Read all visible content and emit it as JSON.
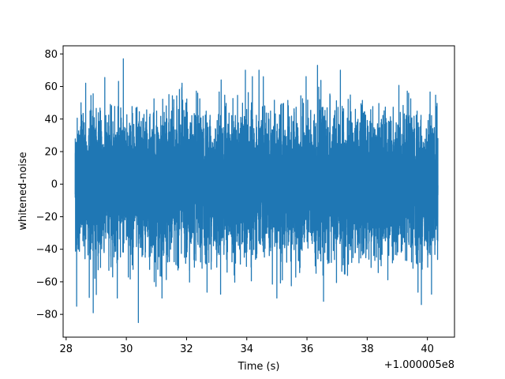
{
  "chart_data": {
    "type": "line",
    "title": "",
    "xlabel": "Time (s)",
    "ylabel": "whitened-noise",
    "x_offset_label": "+1.000005e8",
    "xlim": [
      27.9,
      40.9
    ],
    "ylim": [
      -94,
      85
    ],
    "x_range": [
      28.3,
      40.35
    ],
    "x_ticks": [
      28,
      30,
      32,
      34,
      36,
      38,
      40
    ],
    "y_ticks": [
      -80,
      -60,
      -40,
      -20,
      0,
      20,
      40,
      60,
      80
    ],
    "grid": false,
    "legend": "none",
    "series": [
      {
        "color": "#1f77b4",
        "typical_amplitude": 20,
        "extremes": [
          {
            "x": 29.9,
            "y": 77
          },
          {
            "x": 30.4,
            "y": -85
          },
          {
            "x": 28.35,
            "y": -75
          },
          {
            "x": 36.35,
            "y": 73
          },
          {
            "x": 36.55,
            "y": -72
          },
          {
            "x": 28.65,
            "y": 62
          },
          {
            "x": 33.15,
            "y": 64
          },
          {
            "x": 34.55,
            "y": 66
          },
          {
            "x": 39.8,
            "y": -74
          },
          {
            "x": 28.9,
            "y": -79
          },
          {
            "x": 31.85,
            "y": 62
          },
          {
            "x": 35.0,
            "y": -70
          }
        ]
      }
    ]
  }
}
